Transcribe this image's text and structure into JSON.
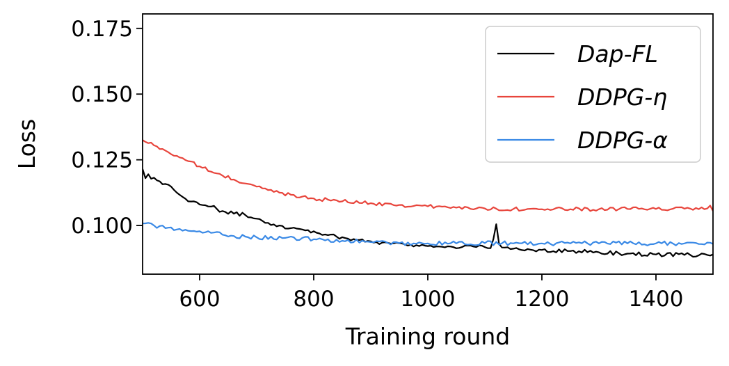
{
  "chart_data": {
    "type": "line",
    "title": "",
    "xlabel": "Training round",
    "ylabel": "Loss",
    "xlim": [
      500,
      1500
    ],
    "ylim": [
      0.0815,
      0.1805
    ],
    "xticks": [
      600,
      800,
      1000,
      1200,
      1400
    ],
    "xtick_labels": [
      "600",
      "800",
      "1000",
      "1200",
      "1400"
    ],
    "yticks": [
      0.1,
      0.125,
      0.15,
      0.175
    ],
    "ytick_labels": [
      "0.100",
      "0.125",
      "0.150",
      "0.175"
    ],
    "grid": false,
    "legend_position": "top-right",
    "x_step": 5,
    "series": [
      {
        "name": "Dap-FL",
        "color": "#000000",
        "anchors": [
          [
            500,
            0.1215
          ],
          [
            505,
            0.118
          ],
          [
            510,
            0.1195
          ],
          [
            515,
            0.1178
          ],
          [
            520,
            0.1182
          ],
          [
            530,
            0.1168
          ],
          [
            540,
            0.1158
          ],
          [
            550,
            0.1148
          ],
          [
            560,
            0.1125
          ],
          [
            575,
            0.1102
          ],
          [
            590,
            0.1092
          ],
          [
            600,
            0.108
          ],
          [
            620,
            0.1072
          ],
          [
            640,
            0.1055
          ],
          [
            660,
            0.1045
          ],
          [
            680,
            0.104
          ],
          [
            700,
            0.1026
          ],
          [
            720,
            0.101
          ],
          [
            740,
            0.1
          ],
          [
            760,
            0.099
          ],
          [
            780,
            0.0985
          ],
          [
            800,
            0.0978
          ],
          [
            820,
            0.0966
          ],
          [
            840,
            0.0958
          ],
          [
            860,
            0.095
          ],
          [
            880,
            0.0945
          ],
          [
            900,
            0.094
          ],
          [
            920,
            0.0935
          ],
          [
            940,
            0.0932
          ],
          [
            960,
            0.0928
          ],
          [
            980,
            0.0925
          ],
          [
            1000,
            0.0922
          ],
          [
            1020,
            0.092
          ],
          [
            1040,
            0.092
          ],
          [
            1060,
            0.0918
          ],
          [
            1080,
            0.092
          ],
          [
            1100,
            0.0918
          ],
          [
            1112,
            0.092
          ],
          [
            1116,
            0.096
          ],
          [
            1120,
            0.1005
          ],
          [
            1124,
            0.093
          ],
          [
            1128,
            0.091
          ],
          [
            1150,
            0.0912
          ],
          [
            1200,
            0.0907
          ],
          [
            1250,
            0.0903
          ],
          [
            1300,
            0.0898
          ],
          [
            1350,
            0.0893
          ],
          [
            1400,
            0.089
          ],
          [
            1450,
            0.0888
          ],
          [
            1500,
            0.089
          ]
        ],
        "noise": 0.00075
      },
      {
        "name": "DDPG-η",
        "color": "#e8453c",
        "anchors": [
          [
            500,
            0.1325
          ],
          [
            520,
            0.1305
          ],
          [
            540,
            0.1285
          ],
          [
            560,
            0.1265
          ],
          [
            580,
            0.1245
          ],
          [
            600,
            0.1225
          ],
          [
            620,
            0.1205
          ],
          [
            640,
            0.119
          ],
          [
            660,
            0.1175
          ],
          [
            680,
            0.116
          ],
          [
            700,
            0.1148
          ],
          [
            720,
            0.1135
          ],
          [
            740,
            0.1125
          ],
          [
            760,
            0.1117
          ],
          [
            780,
            0.111
          ],
          [
            800,
            0.1103
          ],
          [
            850,
            0.1092
          ],
          [
            900,
            0.1085
          ],
          [
            950,
            0.1078
          ],
          [
            1000,
            0.1073
          ],
          [
            1050,
            0.1068
          ],
          [
            1100,
            0.1065
          ],
          [
            1150,
            0.1063
          ],
          [
            1200,
            0.1062
          ],
          [
            1250,
            0.1062
          ],
          [
            1300,
            0.1062
          ],
          [
            1350,
            0.1063
          ],
          [
            1400,
            0.1063
          ],
          [
            1450,
            0.1064
          ],
          [
            1490,
            0.1065
          ],
          [
            1494,
            0.1078
          ],
          [
            1500,
            0.1055
          ]
        ],
        "noise": 0.0007
      },
      {
        "name": "DDPG-α",
        "color": "#3b8ae6",
        "anchors": [
          [
            500,
            0.1008
          ],
          [
            510,
            0.101
          ],
          [
            520,
            0.1
          ],
          [
            540,
            0.099
          ],
          [
            560,
            0.0985
          ],
          [
            580,
            0.098
          ],
          [
            600,
            0.0978
          ],
          [
            620,
            0.0972
          ],
          [
            640,
            0.0965
          ],
          [
            660,
            0.096
          ],
          [
            680,
            0.0958
          ],
          [
            700,
            0.0955
          ],
          [
            750,
            0.0953
          ],
          [
            800,
            0.0948
          ],
          [
            850,
            0.0942
          ],
          [
            900,
            0.0937
          ],
          [
            950,
            0.0933
          ],
          [
            1000,
            0.0932
          ],
          [
            1050,
            0.0932
          ],
          [
            1100,
            0.0933
          ],
          [
            1150,
            0.0932
          ],
          [
            1200,
            0.0932
          ],
          [
            1250,
            0.0932
          ],
          [
            1300,
            0.0932
          ],
          [
            1350,
            0.0932
          ],
          [
            1400,
            0.0932
          ],
          [
            1450,
            0.0932
          ],
          [
            1500,
            0.093
          ]
        ],
        "noise": 0.0008
      }
    ]
  }
}
